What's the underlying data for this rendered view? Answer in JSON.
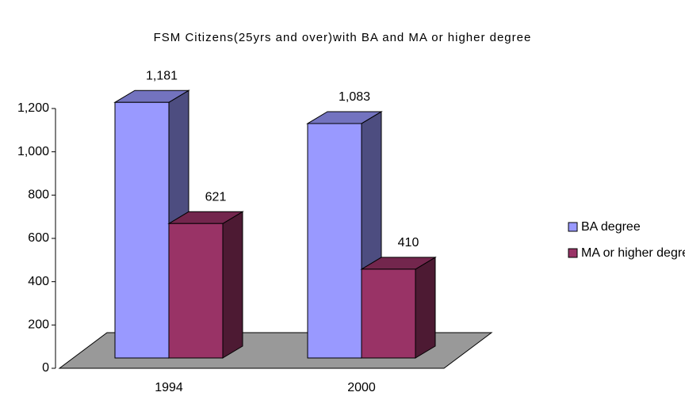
{
  "chart_data": {
    "type": "bar3d",
    "title": "FSM Citizens(25yrs and over)with BA and MA or higher degree",
    "categories": [
      "1994",
      "2000"
    ],
    "series": [
      {
        "name": "BA degree",
        "color": "#9999ff",
        "values": [
          1181,
          1083
        ],
        "value_labels": [
          "1,181",
          "1,083"
        ]
      },
      {
        "name": "MA or higher degree",
        "color": "#993366",
        "values": [
          621,
          410
        ],
        "value_labels": [
          "621",
          "410"
        ]
      }
    ],
    "ylim": [
      0,
      1200
    ],
    "yticks": [
      0,
      200,
      400,
      600,
      800,
      {
        "value": 1000,
        "label": "1,000"
      },
      {
        "value": 1200,
        "label": "1,200"
      }
    ],
    "legend": "right"
  }
}
